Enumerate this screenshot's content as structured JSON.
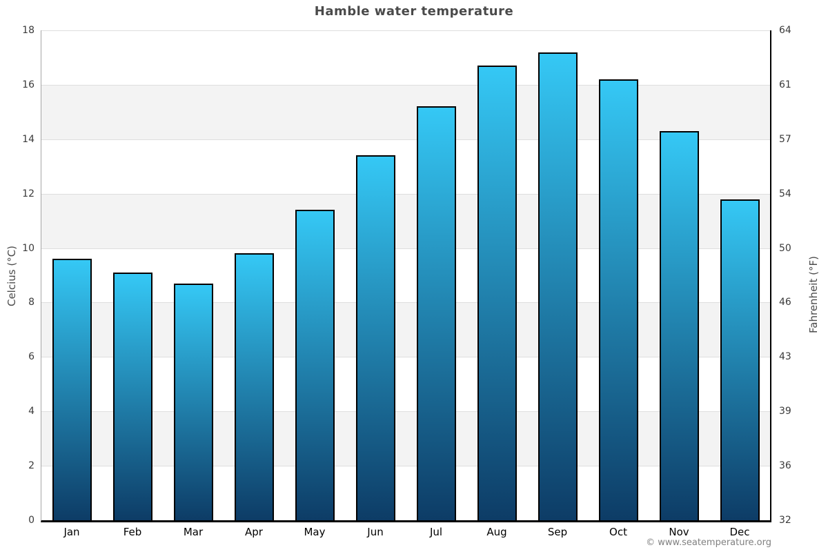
{
  "page": {
    "title": "Hamble water temperature",
    "footer": "© www.seatemperature.org"
  },
  "chart_data": {
    "type": "bar",
    "title": "Hamble water temperature",
    "categories": [
      "Jan",
      "Feb",
      "Mar",
      "Apr",
      "May",
      "Jun",
      "Jul",
      "Aug",
      "Sep",
      "Oct",
      "Nov",
      "Dec"
    ],
    "values": [
      9.6,
      9.1,
      8.7,
      9.8,
      11.4,
      13.4,
      15.2,
      16.7,
      17.2,
      16.2,
      14.3,
      11.8
    ],
    "series_name": "Water temperature",
    "xlabel": "",
    "ylabel_left": "Celcius (°C)",
    "ylabel_right": "Fahrenheit (°F)",
    "ylim": [
      0,
      18
    ],
    "y_left_ticks": [
      0,
      2,
      4,
      6,
      8,
      10,
      12,
      14,
      16,
      18
    ],
    "y_right_tick_labels": [
      "32",
      "36",
      "39",
      "43",
      "46",
      "50",
      "54",
      "57",
      "61",
      "64"
    ],
    "grid": "horizontal gridlines with alternating shaded bands",
    "legend": "none",
    "colors": {
      "bar_gradient_top": "#35c8f5",
      "bar_gradient_bottom": "#0d3c66",
      "bar_border": "#000000",
      "band_shade": "#f3f3f3",
      "gridline": "#dedede",
      "left_spine": "#a6a6a6",
      "bottom_axis": "#000000",
      "right_spine": "#000000",
      "title_text": "#4a4a4a",
      "tick_text": "#3a3a3a",
      "footer_text": "#808080"
    }
  }
}
